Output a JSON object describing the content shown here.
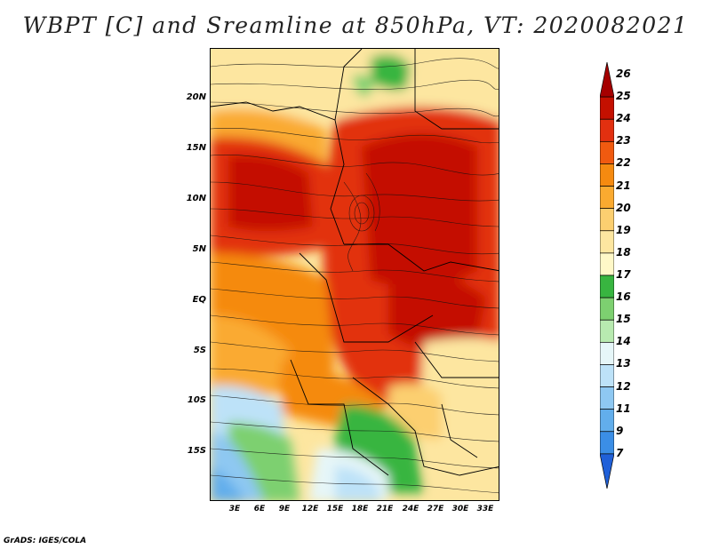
{
  "title": "WBPT [C] and Sreamline at 850hPa, VT: 2020082021",
  "credit": "GrADS: IGES/COLA",
  "lat_ticks": [
    "20N",
    "15N",
    "10N",
    "5N",
    "EQ",
    "5S",
    "10S",
    "15S"
  ],
  "lon_ticks": [
    "3E",
    "6E",
    "9E",
    "12E",
    "15E",
    "18E",
    "21E",
    "24E",
    "27E",
    "30E",
    "33E"
  ],
  "colorbar": {
    "labels": [
      "26",
      "25",
      "24",
      "23",
      "22",
      "21",
      "20",
      "19",
      "18",
      "17",
      "16",
      "15",
      "14",
      "13",
      "12",
      "11",
      "9",
      "7"
    ],
    "colors": [
      "#a50000",
      "#c41000",
      "#e23010",
      "#f05a10",
      "#f58a10",
      "#faaa30",
      "#fccf70",
      "#fde6a0",
      "#fff8c8",
      "#38b540",
      "#7dd070",
      "#b8eab0",
      "#e6f6f8",
      "#bde2f8",
      "#8ec8f2",
      "#62aeec",
      "#3b8ee6",
      "#2060d8"
    ]
  }
}
